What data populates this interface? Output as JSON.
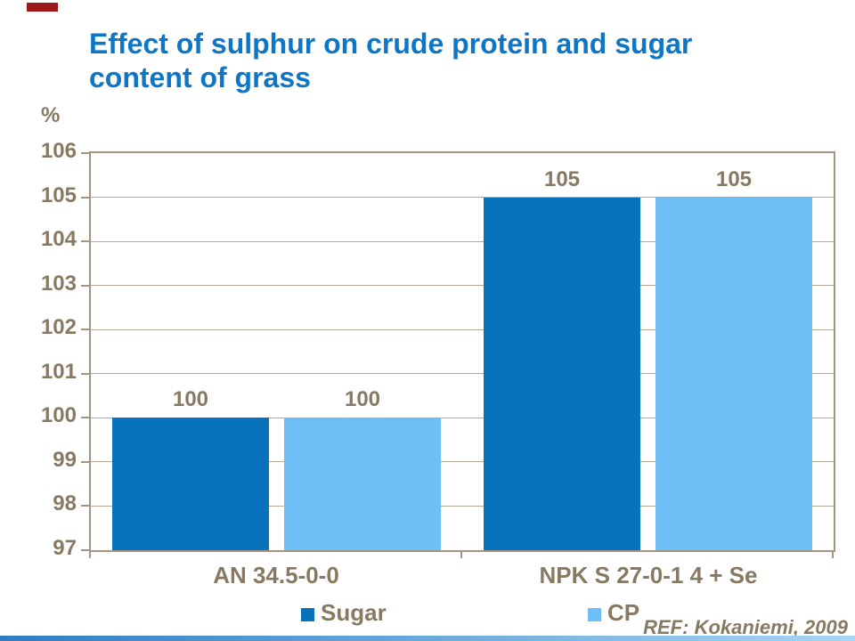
{
  "slide": {
    "title_line1": "Effect of sulphur on crude protein and sugar",
    "title_line2": "content of grass",
    "axis_unit_label": "%",
    "ref_note": "REF: Kokaniemi, 2009"
  },
  "accent_colors": {
    "title_blue": "#0e76c6",
    "axis_text_brown": "#887a62",
    "gridline_tan": "#b4a798",
    "plot_border_tan": "#a39582",
    "corner_marker_red": "#9e1a1a"
  },
  "chart_data": {
    "type": "bar",
    "title": "Effect of sulphur on crude protein and sugar content of grass",
    "xlabel": "",
    "ylabel": "%",
    "ylim": [
      97,
      106
    ],
    "yticks": [
      97,
      98,
      99,
      100,
      101,
      102,
      103,
      104,
      105,
      106
    ],
    "grid": true,
    "legend_position": "bottom",
    "categories": [
      "AN 34.5-0-0",
      "NPK S 27-0-1 4 + Se"
    ],
    "series": [
      {
        "name": "Sugar",
        "color": "#0873bc",
        "values": [
          100,
          105
        ]
      },
      {
        "name": "CP",
        "color": "#6fbff7",
        "values": [
          100,
          105
        ]
      }
    ],
    "annotation": "REF: Kokaniemi, 2009"
  }
}
